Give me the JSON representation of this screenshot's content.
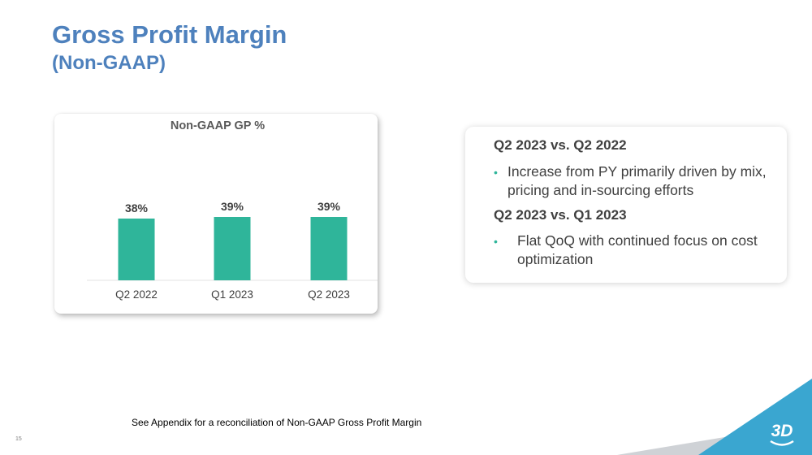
{
  "slide": {
    "title": "Gross Profit Margin",
    "subtitle": "(Non-GAAP)",
    "footnote": "See Appendix for a reconciliation of Non-GAAP Gross Profit Margin",
    "page_number": "15",
    "logo_text": "3D"
  },
  "commentary": {
    "sections": [
      {
        "heading": "Q2 2023 vs. Q2 2022",
        "bullet": "Increase from PY primarily driven by mix, pricing and in-sourcing efforts"
      },
      {
        "heading": "Q2 2023 vs. Q1 2023",
        "bullet": "Flat QoQ with continued focus on cost optimization"
      }
    ]
  },
  "colors": {
    "title": "#4e81bd",
    "bar": "#2fb59a",
    "text": "#404040",
    "accent_teal": "#3aa6d0"
  },
  "chart_data": {
    "type": "bar",
    "title": "Non-GAAP GP %",
    "categories": [
      "Q2 2022",
      "Q1 2023",
      "Q2 2023"
    ],
    "values": [
      38,
      39,
      39
    ],
    "value_labels": [
      "38%",
      "39%",
      "39%"
    ],
    "xlabel": "",
    "ylabel": "",
    "grid": false,
    "legend": "none"
  }
}
